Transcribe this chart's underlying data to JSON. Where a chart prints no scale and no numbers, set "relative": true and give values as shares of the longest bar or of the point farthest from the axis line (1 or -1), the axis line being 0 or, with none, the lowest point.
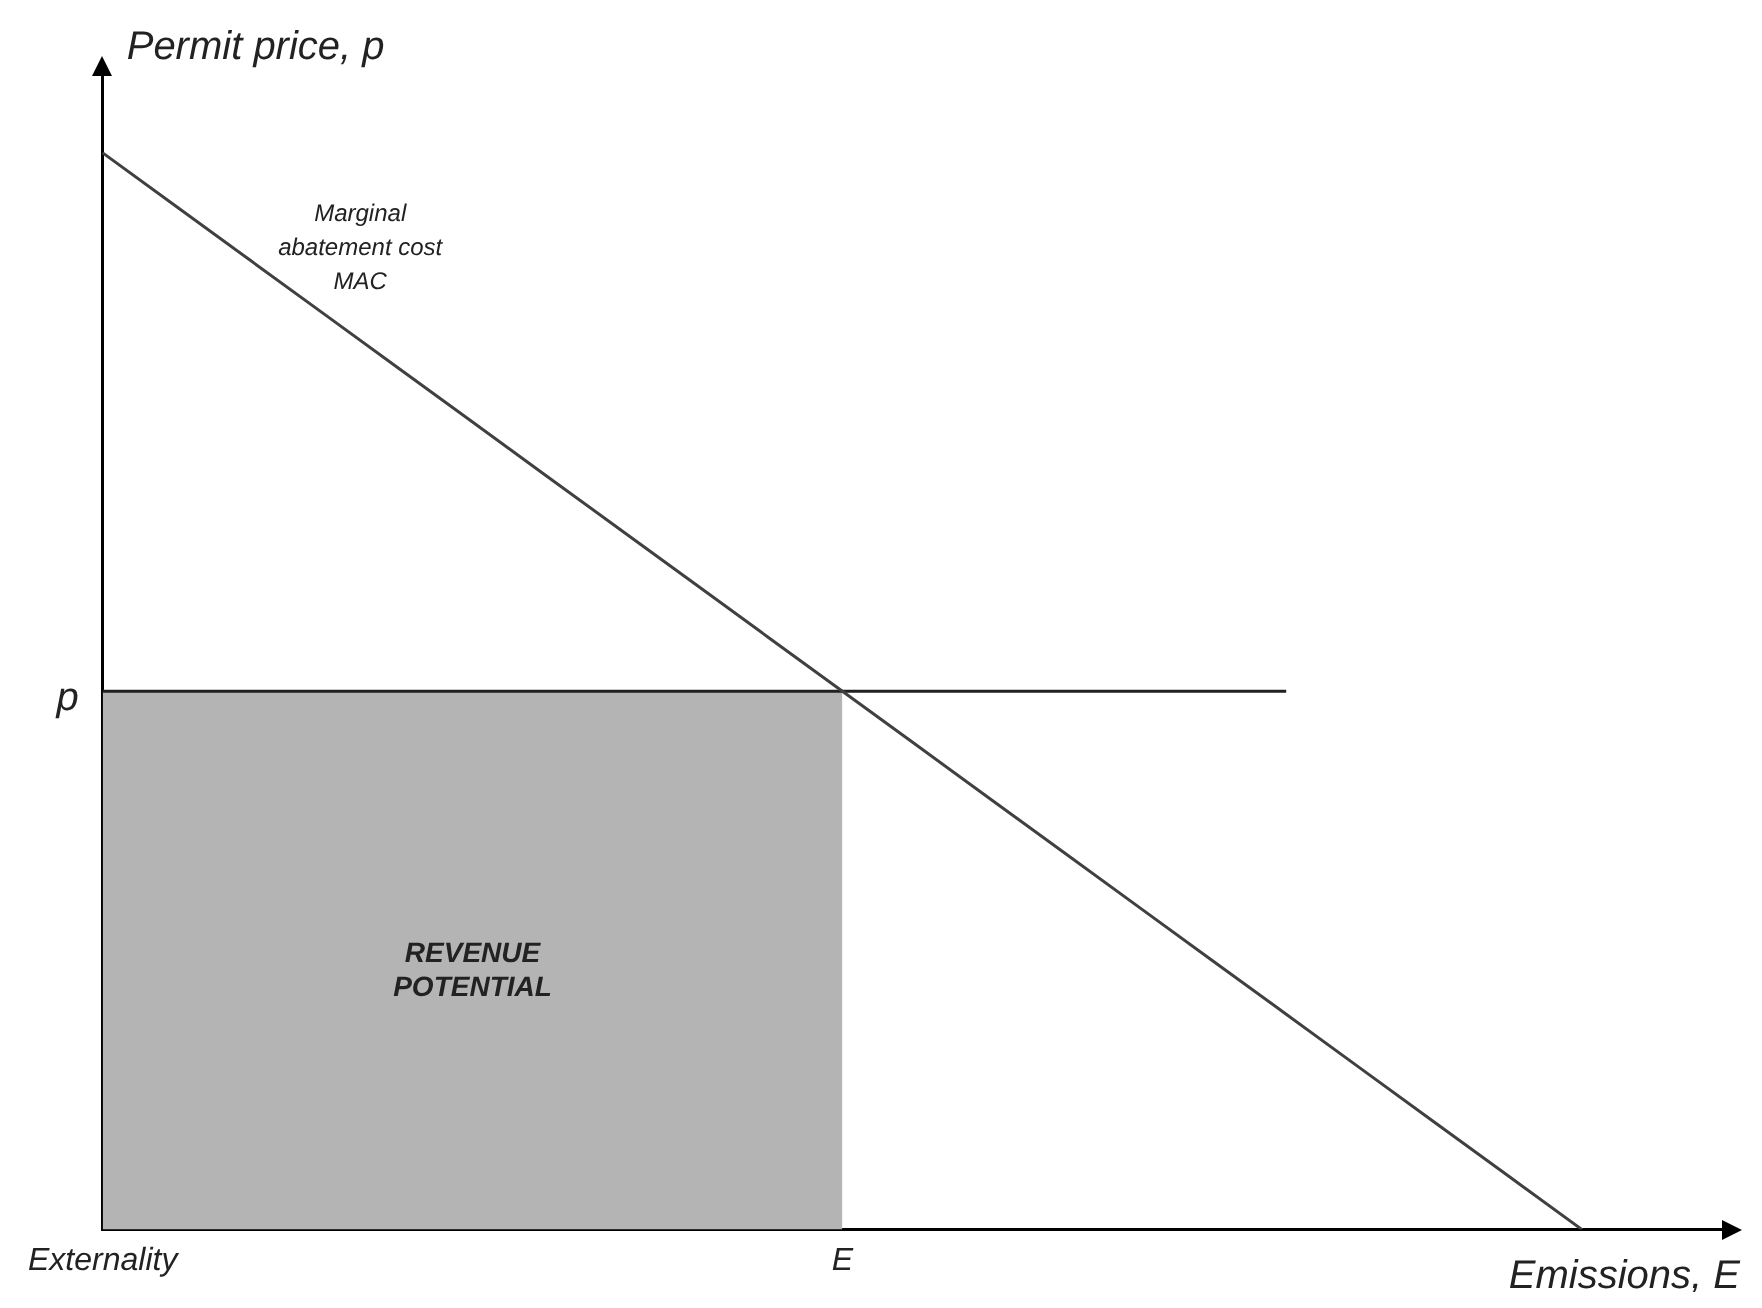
{
  "chart_data": {
    "type": "line",
    "relative": true,
    "xlabel": "Emissions, E",
    "ylabel": "Permit price, p",
    "marker": "none",
    "legend": false,
    "categories": [
      "Externality",
      null,
      null,
      null,
      null,
      null,
      null,
      null,
      null,
      null,
      "E",
      null,
      null,
      null,
      null,
      null,
      null,
      null,
      null,
      null,
      null,
      null,
      null
    ],
    "series": [
      {
        "type": "area",
        "name": "REVENUE\nPOTENTIAL",
        "color": "#b4b4b4",
        "values": [
          0.5,
          0.5,
          0.5,
          0.5,
          0.5,
          0.5,
          0.5,
          0.5,
          0.5,
          0.5,
          0.5,
          null,
          null,
          null,
          null,
          null,
          null,
          null,
          null,
          null,
          null,
          null,
          null
        ]
      },
      {
        "name": "Marginal\nabatement cost\nMAC",
        "color": "#404040",
        "values": [
          1,
          0.95,
          0.9,
          0.85,
          0.8,
          0.75,
          0.7,
          0.65,
          0.6,
          0.55,
          0.5,
          0.45,
          0.4,
          0.35,
          0.3,
          0.25,
          0.2,
          0.15,
          0.1,
          0.05,
          0,
          null,
          null
        ]
      },
      {
        "name": "p",
        "color": "#202020",
        "values": [
          0.5,
          0.5,
          0.5,
          0.5,
          0.5,
          0.5,
          0.5,
          0.5,
          0.5,
          0.5,
          0.5,
          0.5,
          0.5,
          0.5,
          0.5,
          0.5,
          0.5,
          null,
          null,
          null,
          null,
          null,
          null
        ]
      }
    ]
  }
}
